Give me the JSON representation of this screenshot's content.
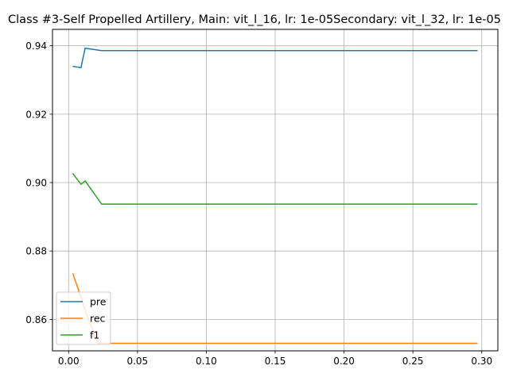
{
  "chart_data": {
    "type": "line",
    "title": "Class #3-Self Propelled Artillery, Main: vit_l_16, lr: 1e-05Secondary: vit_l_32, lr: 1e-05",
    "xlabel": "",
    "ylabel": "",
    "xlim": [
      -0.0117,
      0.3117
    ],
    "ylim": [
      0.8508,
      0.9448
    ],
    "xticks": [
      0.0,
      0.05,
      0.1,
      0.15,
      0.2,
      0.25,
      0.3
    ],
    "xtick_labels": [
      "0.00",
      "0.05",
      "0.10",
      "0.15",
      "0.20",
      "0.25",
      "0.30"
    ],
    "yticks": [
      0.86,
      0.88,
      0.9,
      0.92,
      0.94
    ],
    "ytick_labels": [
      "0.86",
      "0.88",
      "0.90",
      "0.92",
      "0.94"
    ],
    "grid": true,
    "legend_position": "lower-left",
    "series": [
      {
        "name": "pre",
        "color": "#1f77b4",
        "x": [
          0.003,
          0.009,
          0.012,
          0.024,
          0.297
        ],
        "y": [
          0.934,
          0.9336,
          0.9393,
          0.9386,
          0.9386
        ]
      },
      {
        "name": "rec",
        "color": "#ff7f0e",
        "x": [
          0.003,
          0.009,
          0.012,
          0.021,
          0.024,
          0.297
        ],
        "y": [
          0.8735,
          0.8665,
          0.8627,
          0.853,
          0.853,
          0.853
        ]
      },
      {
        "name": "f1",
        "color": "#2ca02c",
        "x": [
          0.003,
          0.009,
          0.012,
          0.024,
          0.297
        ],
        "y": [
          0.9027,
          0.8995,
          0.9005,
          0.8937,
          0.8937
        ]
      }
    ]
  }
}
